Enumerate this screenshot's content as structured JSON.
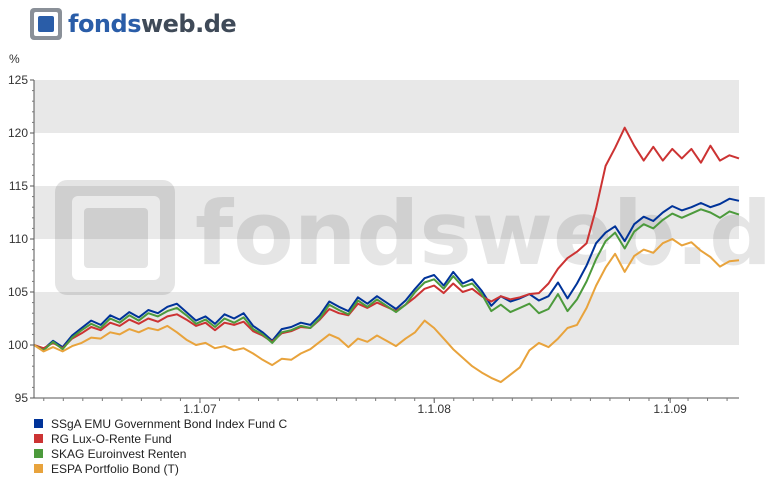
{
  "logo": {
    "text_part1": "fonds",
    "text_part2": "web",
    "text_part3": ".de",
    "watermark_text": "fondsweb.de"
  },
  "chart_data": {
    "type": "line",
    "ylabel": "%",
    "ylim": [
      95,
      125
    ],
    "yticks": [
      95,
      100,
      105,
      110,
      115,
      120,
      125
    ],
    "x_ticks": [
      {
        "label": "1.1.07",
        "at": 0.2354
      },
      {
        "label": "1.1.08",
        "at": 0.5677
      },
      {
        "label": "1.1.09",
        "at": 0.9023
      }
    ],
    "x_range": [
      "2006-04",
      "2009-04"
    ],
    "grid_bands": "alternating",
    "legend_position": "bottom-left",
    "series": [
      {
        "name": "SSgA EMU Government Bond Index Fund C",
        "color": "#003399",
        "values": [
          100.0,
          99.6,
          100.4,
          99.8,
          100.9,
          101.6,
          102.3,
          101.9,
          102.8,
          102.4,
          103.1,
          102.6,
          103.3,
          103.0,
          103.6,
          103.9,
          103.1,
          102.3,
          102.7,
          102.0,
          102.9,
          102.5,
          103.0,
          101.8,
          101.2,
          100.4,
          101.5,
          101.7,
          102.1,
          101.9,
          102.8,
          104.1,
          103.6,
          103.2,
          104.5,
          103.9,
          104.6,
          104.0,
          103.4,
          104.2,
          105.3,
          106.3,
          106.6,
          105.6,
          106.9,
          105.8,
          106.2,
          105.1,
          103.7,
          104.6,
          104.1,
          104.4,
          104.8,
          104.2,
          104.6,
          105.9,
          104.4,
          105.8,
          107.5,
          109.6,
          110.6,
          111.2,
          109.8,
          111.4,
          112.1,
          111.7,
          112.5,
          113.1,
          112.7,
          113.0,
          113.4,
          113.0,
          113.3,
          113.8,
          113.6
        ]
      },
      {
        "name": "RG Lux-O-Rente Fund",
        "color": "#cc3333",
        "values": [
          100.0,
          99.7,
          100.2,
          99.7,
          100.6,
          101.1,
          101.7,
          101.4,
          102.1,
          101.8,
          102.4,
          102.0,
          102.5,
          102.2,
          102.7,
          102.9,
          102.4,
          101.8,
          102.1,
          101.4,
          102.1,
          101.9,
          102.2,
          101.3,
          100.9,
          100.3,
          101.1,
          101.3,
          101.7,
          101.6,
          102.4,
          103.4,
          103.0,
          102.8,
          103.9,
          103.5,
          104.0,
          103.6,
          103.2,
          103.8,
          104.5,
          105.3,
          105.6,
          104.9,
          105.8,
          105.0,
          105.3,
          104.6,
          104.1,
          104.6,
          104.3,
          104.5,
          104.8,
          104.9,
          105.8,
          107.2,
          108.2,
          108.8,
          109.6,
          112.9,
          116.9,
          118.6,
          120.5,
          118.8,
          117.4,
          118.7,
          117.4,
          118.5,
          117.6,
          118.5,
          117.2,
          118.8,
          117.4,
          117.9,
          117.6
        ]
      },
      {
        "name": "SKAG Euroinvest Renten",
        "color": "#4c9a3c",
        "values": [
          100.0,
          99.5,
          100.3,
          99.6,
          100.7,
          101.4,
          102.0,
          101.6,
          102.5,
          102.1,
          102.8,
          102.3,
          103.0,
          102.7,
          103.2,
          103.5,
          102.8,
          102.0,
          102.4,
          101.7,
          102.5,
          102.1,
          102.6,
          101.5,
          101.0,
          100.2,
          101.2,
          101.4,
          101.8,
          101.6,
          102.5,
          103.8,
          103.3,
          102.9,
          104.2,
          103.6,
          104.3,
          103.7,
          103.1,
          103.8,
          105.0,
          105.9,
          106.2,
          105.3,
          106.5,
          105.5,
          105.8,
          104.8,
          103.2,
          103.8,
          103.1,
          103.5,
          103.9,
          103.0,
          103.4,
          104.8,
          103.2,
          104.3,
          106.0,
          108.1,
          109.8,
          110.6,
          109.1,
          110.7,
          111.4,
          111.0,
          111.8,
          112.4,
          112.0,
          112.4,
          112.8,
          112.5,
          112.0,
          112.6,
          112.3
        ]
      },
      {
        "name": "ESPA Portfolio Bond (T)",
        "color": "#e8a33c",
        "values": [
          100.0,
          99.4,
          99.8,
          99.4,
          99.9,
          100.2,
          100.7,
          100.6,
          101.2,
          101.0,
          101.5,
          101.2,
          101.6,
          101.4,
          101.8,
          101.2,
          100.5,
          100.0,
          100.2,
          99.7,
          99.9,
          99.5,
          99.7,
          99.2,
          98.6,
          98.1,
          98.7,
          98.6,
          99.2,
          99.6,
          100.3,
          101.0,
          100.6,
          99.8,
          100.6,
          100.3,
          100.9,
          100.4,
          99.9,
          100.6,
          101.2,
          102.3,
          101.6,
          100.6,
          99.6,
          98.8,
          98.0,
          97.4,
          96.9,
          96.5,
          97.2,
          97.9,
          99.5,
          100.2,
          99.8,
          100.6,
          101.6,
          101.9,
          103.5,
          105.6,
          107.3,
          108.6,
          106.9,
          108.4,
          109.0,
          108.7,
          109.6,
          110.0,
          109.4,
          109.7,
          108.9,
          108.3,
          107.4,
          107.9,
          108.0
        ]
      }
    ]
  }
}
